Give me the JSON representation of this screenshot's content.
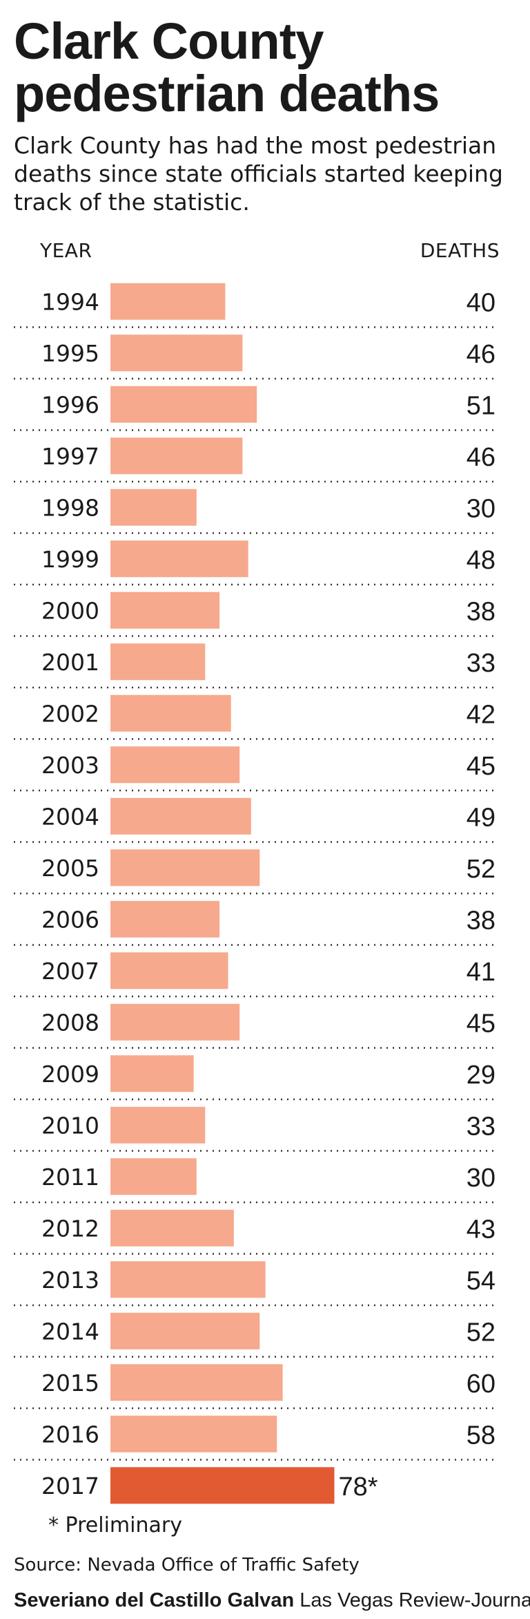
{
  "header": {
    "title": "Clark County pedestrian deaths",
    "subtitle": "Clark County has had the most pedestrian deaths since state officials started keeping track of the statistic."
  },
  "chart_data": {
    "type": "bar",
    "orientation": "horizontal",
    "title": "Clark County pedestrian deaths",
    "xlabel": "DEATHS",
    "ylabel": "YEAR",
    "categories": [
      "1994",
      "1995",
      "1996",
      "1997",
      "1998",
      "1999",
      "2000",
      "2001",
      "2002",
      "2003",
      "2004",
      "2005",
      "2006",
      "2007",
      "2008",
      "2009",
      "2010",
      "2011",
      "2012",
      "2013",
      "2014",
      "2015",
      "2016",
      "2017"
    ],
    "values": [
      40,
      46,
      51,
      46,
      30,
      48,
      38,
      33,
      42,
      45,
      49,
      52,
      38,
      41,
      45,
      29,
      33,
      30,
      43,
      54,
      52,
      60,
      58,
      78
    ],
    "value_labels": [
      "40",
      "46",
      "51",
      "46",
      "30",
      "48",
      "38",
      "33",
      "42",
      "45",
      "49",
      "52",
      "38",
      "41",
      "45",
      "29",
      "33",
      "30",
      "43",
      "54",
      "52",
      "60",
      "58",
      "78*"
    ],
    "highlight_index": 23,
    "colors": {
      "bar": "#f6a98c",
      "highlight": "#e15a32",
      "divider": "#333333"
    },
    "grid": false
  },
  "footer": {
    "note": "* Preliminary",
    "source": "Source: Nevada Office of Traffic Safety",
    "credit_name": "Severiano del Castillo Galvan",
    "credit_org": "Las Vegas Review-Journal"
  }
}
